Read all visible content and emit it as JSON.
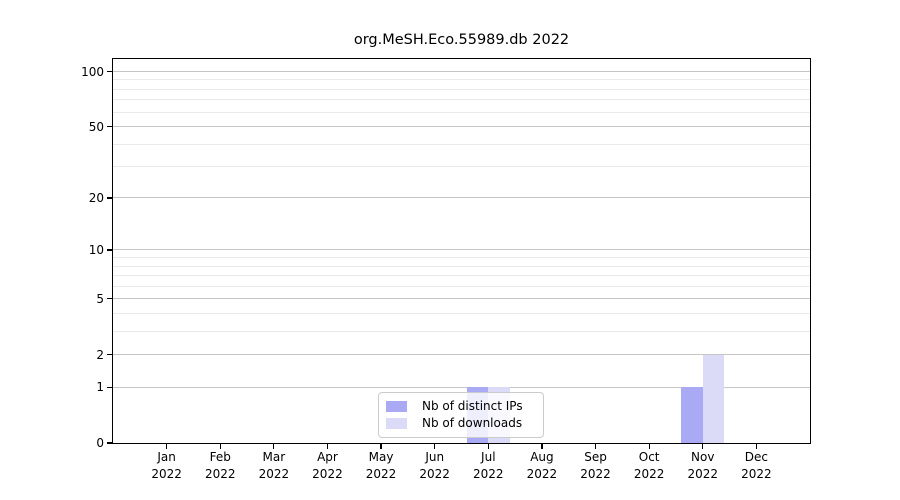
{
  "chart_data": {
    "type": "bar",
    "title": "org.MeSH.Eco.55989.db 2022",
    "categories": [
      "Jan",
      "Feb",
      "Mar",
      "Apr",
      "May",
      "Jun",
      "Jul",
      "Aug",
      "Sep",
      "Oct",
      "Nov",
      "Dec"
    ],
    "category_year": "2022",
    "series": [
      {
        "name": "Nb of distinct IPs",
        "color": "#a9a9f4",
        "values": [
          0,
          0,
          0,
          0,
          0,
          0,
          1,
          0,
          0,
          0,
          1,
          0
        ]
      },
      {
        "name": "Nb of downloads",
        "color": "#dbdbf8",
        "values": [
          0,
          0,
          0,
          0,
          0,
          0,
          1,
          0,
          0,
          0,
          2,
          0
        ]
      }
    ],
    "xlabel": "",
    "ylabel": "",
    "yscale": "log1p",
    "ylim": [
      0,
      117
    ],
    "yticks": [
      0,
      1,
      2,
      5,
      10,
      20,
      50,
      100
    ],
    "yticks_minor": [
      3,
      4,
      6,
      7,
      8,
      9,
      30,
      40,
      60,
      70,
      80,
      90
    ],
    "grid": true,
    "legend_position": "lower center"
  }
}
